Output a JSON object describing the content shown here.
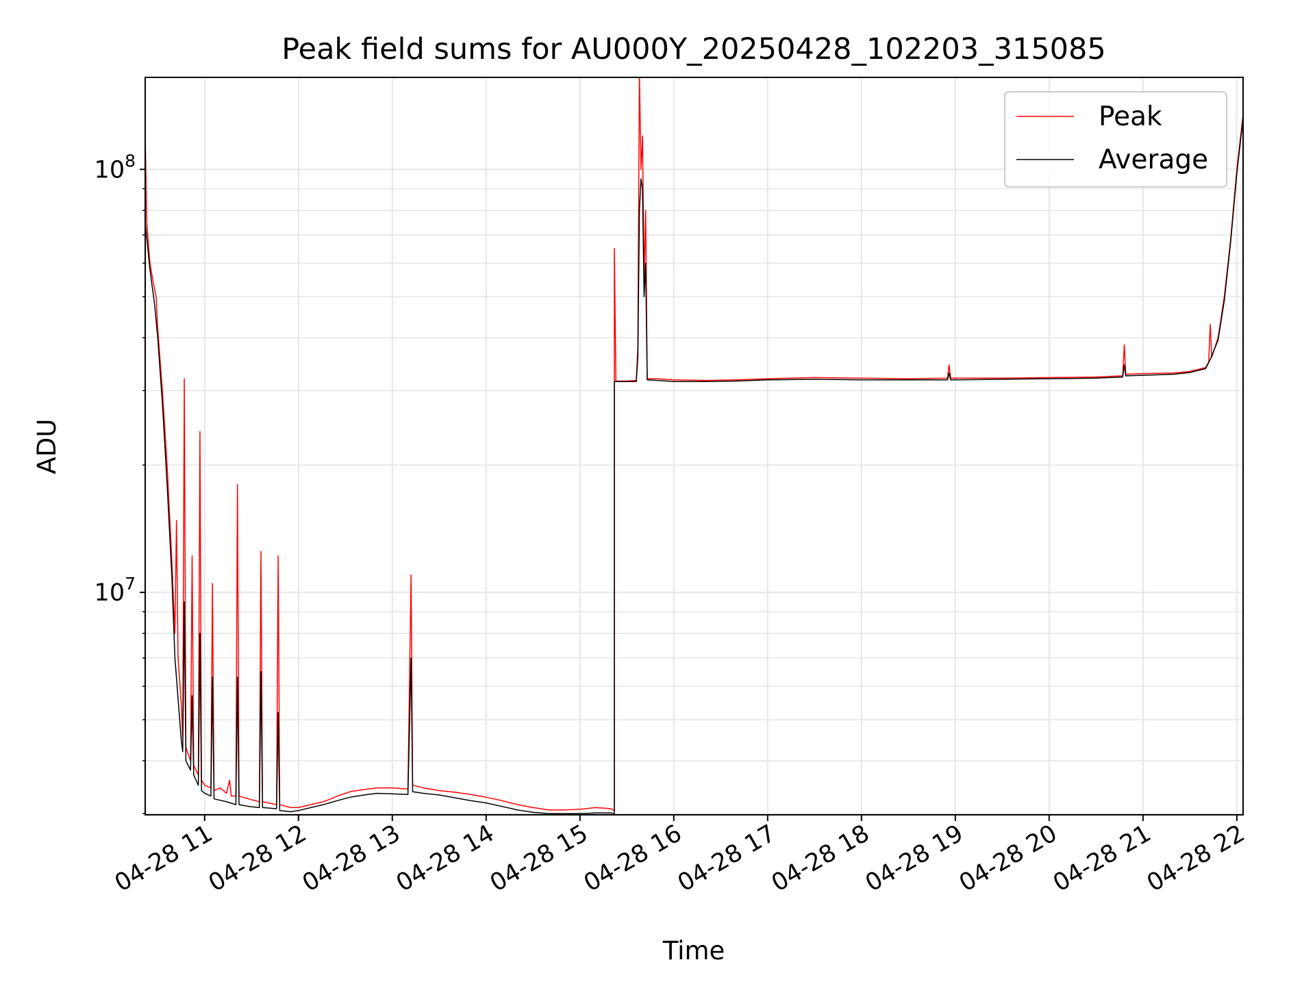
{
  "chart_data": {
    "type": "line",
    "title": "Peak field sums for AU000Y_20250428_102203_315085",
    "xlabel": "Time",
    "ylabel": "ADU",
    "yscale": "log",
    "ylim": [
      2980000,
      165000000
    ],
    "xlim": [
      "2025-04-28 10:22",
      "2025-04-28 22:04"
    ],
    "grid": true,
    "legend_position": "top-right",
    "x_ticks": [
      {
        "t": "2025-04-28 11:00",
        "label": "04-28 11"
      },
      {
        "t": "2025-04-28 12:00",
        "label": "04-28 12"
      },
      {
        "t": "2025-04-28 13:00",
        "label": "04-28 13"
      },
      {
        "t": "2025-04-28 14:00",
        "label": "04-28 14"
      },
      {
        "t": "2025-04-28 15:00",
        "label": "04-28 15"
      },
      {
        "t": "2025-04-28 16:00",
        "label": "04-28 16"
      },
      {
        "t": "2025-04-28 17:00",
        "label": "04-28 17"
      },
      {
        "t": "2025-04-28 18:00",
        "label": "04-28 18"
      },
      {
        "t": "2025-04-28 19:00",
        "label": "04-28 19"
      },
      {
        "t": "2025-04-28 20:00",
        "label": "04-28 20"
      },
      {
        "t": "2025-04-28 21:00",
        "label": "04-28 21"
      },
      {
        "t": "2025-04-28 22:00",
        "label": "04-28 22"
      }
    ],
    "y_major_ticks": [
      {
        "value": 10000000,
        "base": "10",
        "exp": "7"
      },
      {
        "value": 100000000,
        "base": "10",
        "exp": "8"
      }
    ],
    "series": [
      {
        "name": "Peak",
        "color": "#ff0000",
        "points": [
          [
            "2025-04-28 10:22",
            120000000
          ],
          [
            "2025-04-28 10:23",
            75000000
          ],
          [
            "2025-04-28 10:25",
            60000000
          ],
          [
            "2025-04-28 10:28",
            52000000
          ],
          [
            "2025-04-28 10:29",
            50000000
          ],
          [
            "2025-04-28 10:30",
            42000000
          ],
          [
            "2025-04-28 10:33",
            30000000
          ],
          [
            "2025-04-28 10:36",
            20000000
          ],
          [
            "2025-04-28 10:39",
            12000000
          ],
          [
            "2025-04-28 10:41",
            8000000
          ],
          [
            "2025-04-28 10:42",
            14800000
          ],
          [
            "2025-04-28 10:43",
            7000000
          ],
          [
            "2025-04-28 10:45",
            5500000
          ],
          [
            "2025-04-28 10:46",
            4500000
          ],
          [
            "2025-04-28 10:47",
            32000000
          ],
          [
            "2025-04-28 10:48",
            4300000
          ],
          [
            "2025-04-28 10:51",
            4000000
          ],
          [
            "2025-04-28 10:52",
            12200000
          ],
          [
            "2025-04-28 10:53",
            3900000
          ],
          [
            "2025-04-28 10:56",
            3700000
          ],
          [
            "2025-04-28 10:57",
            24000000
          ],
          [
            "2025-04-28 10:58",
            3600000
          ],
          [
            "2025-04-28 11:00",
            3500000
          ],
          [
            "2025-04-28 11:04",
            3450000
          ],
          [
            "2025-04-28 11:05",
            10500000
          ],
          [
            "2025-04-28 11:06",
            3400000
          ],
          [
            "2025-04-28 11:10",
            3450000
          ],
          [
            "2025-04-28 11:14",
            3350000
          ],
          [
            "2025-04-28 11:16",
            3600000
          ],
          [
            "2025-04-28 11:17",
            3300000
          ],
          [
            "2025-04-28 11:20",
            3300000
          ],
          [
            "2025-04-28 11:21",
            18000000
          ],
          [
            "2025-04-28 11:22",
            3300000
          ],
          [
            "2025-04-28 11:28",
            3250000
          ],
          [
            "2025-04-28 11:35",
            3200000
          ],
          [
            "2025-04-28 11:36",
            12500000
          ],
          [
            "2025-04-28 11:37",
            3200000
          ],
          [
            "2025-04-28 11:46",
            3150000
          ],
          [
            "2025-04-28 11:47",
            12200000
          ],
          [
            "2025-04-28 11:48",
            3150000
          ],
          [
            "2025-04-28 11:55",
            3100000
          ],
          [
            "2025-04-28 12:00",
            3100000
          ],
          [
            "2025-04-28 12:08",
            3150000
          ],
          [
            "2025-04-28 12:16",
            3200000
          ],
          [
            "2025-04-28 12:25",
            3300000
          ],
          [
            "2025-04-28 12:33",
            3380000
          ],
          [
            "2025-04-28 12:42",
            3420000
          ],
          [
            "2025-04-28 12:50",
            3450000
          ],
          [
            "2025-04-28 13:00",
            3450000
          ],
          [
            "2025-04-28 13:10",
            3430000
          ],
          [
            "2025-04-28 13:12",
            11000000
          ],
          [
            "2025-04-28 13:13",
            3500000
          ],
          [
            "2025-04-28 13:20",
            3450000
          ],
          [
            "2025-04-28 13:30",
            3400000
          ],
          [
            "2025-04-28 13:40",
            3370000
          ],
          [
            "2025-04-28 13:50",
            3330000
          ],
          [
            "2025-04-28 14:00",
            3280000
          ],
          [
            "2025-04-28 14:10",
            3220000
          ],
          [
            "2025-04-28 14:20",
            3150000
          ],
          [
            "2025-04-28 14:30",
            3100000
          ],
          [
            "2025-04-28 14:40",
            3060000
          ],
          [
            "2025-04-28 14:50",
            3060000
          ],
          [
            "2025-04-28 15:00",
            3070000
          ],
          [
            "2025-04-28 15:10",
            3100000
          ],
          [
            "2025-04-28 15:20",
            3080000
          ],
          [
            "2025-04-28 15:22",
            3050000
          ],
          [
            "2025-04-28 15:22",
            65000000
          ],
          [
            "2025-04-28 15:23",
            31600000
          ],
          [
            "2025-04-28 15:30",
            31600000
          ],
          [
            "2025-04-28 15:36",
            31700000
          ],
          [
            "2025-04-28 15:37",
            38000000
          ],
          [
            "2025-04-28 15:38",
            170000000
          ],
          [
            "2025-04-28 15:39",
            100000000
          ],
          [
            "2025-04-28 15:40",
            120000000
          ],
          [
            "2025-04-28 15:41",
            55000000
          ],
          [
            "2025-04-28 15:42",
            80000000
          ],
          [
            "2025-04-28 15:43",
            32000000
          ],
          [
            "2025-04-28 15:50",
            32000000
          ],
          [
            "2025-04-28 16:00",
            31800000
          ],
          [
            "2025-04-28 16:20",
            31700000
          ],
          [
            "2025-04-28 16:40",
            31800000
          ],
          [
            "2025-04-28 17:00",
            32000000
          ],
          [
            "2025-04-28 17:30",
            32200000
          ],
          [
            "2025-04-28 18:00",
            32100000
          ],
          [
            "2025-04-28 18:30",
            32000000
          ],
          [
            "2025-04-28 18:55",
            32100000
          ],
          [
            "2025-04-28 18:56",
            34500000
          ],
          [
            "2025-04-28 18:57",
            32100000
          ],
          [
            "2025-04-28 19:30",
            32100000
          ],
          [
            "2025-04-28 20:00",
            32200000
          ],
          [
            "2025-04-28 20:30",
            32300000
          ],
          [
            "2025-04-28 20:47",
            32500000
          ],
          [
            "2025-04-28 20:48",
            38500000
          ],
          [
            "2025-04-28 20:49",
            32800000
          ],
          [
            "2025-04-28 21:00",
            32900000
          ],
          [
            "2025-04-28 21:20",
            33000000
          ],
          [
            "2025-04-28 21:30",
            33300000
          ],
          [
            "2025-04-28 21:40",
            34000000
          ],
          [
            "2025-04-28 21:42",
            35000000
          ],
          [
            "2025-04-28 21:43",
            43000000
          ],
          [
            "2025-04-28 21:44",
            36000000
          ],
          [
            "2025-04-28 21:48",
            40000000
          ],
          [
            "2025-04-28 21:52",
            50000000
          ],
          [
            "2025-04-28 21:56",
            68000000
          ],
          [
            "2025-04-28 22:00",
            100000000
          ],
          [
            "2025-04-28 22:04",
            135000000
          ]
        ]
      },
      {
        "name": "Average",
        "color": "#000000",
        "points": [
          [
            "2025-04-28 10:22",
            75000000
          ],
          [
            "2025-04-28 10:25",
            58000000
          ],
          [
            "2025-04-28 10:28",
            48000000
          ],
          [
            "2025-04-28 10:30",
            40000000
          ],
          [
            "2025-04-28 10:33",
            28000000
          ],
          [
            "2025-04-28 10:36",
            18000000
          ],
          [
            "2025-04-28 10:39",
            11000000
          ],
          [
            "2025-04-28 10:41",
            7000000
          ],
          [
            "2025-04-28 10:43",
            5600000
          ],
          [
            "2025-04-28 10:45",
            4500000
          ],
          [
            "2025-04-28 10:46",
            4200000
          ],
          [
            "2025-04-28 10:47",
            9500000
          ],
          [
            "2025-04-28 10:48",
            4000000
          ],
          [
            "2025-04-28 10:51",
            3800000
          ],
          [
            "2025-04-28 10:52",
            5700000
          ],
          [
            "2025-04-28 10:53",
            3700000
          ],
          [
            "2025-04-28 10:56",
            3500000
          ],
          [
            "2025-04-28 10:57",
            8000000
          ],
          [
            "2025-04-28 10:58",
            3400000
          ],
          [
            "2025-04-28 11:00",
            3350000
          ],
          [
            "2025-04-28 11:04",
            3300000
          ],
          [
            "2025-04-28 11:05",
            6300000
          ],
          [
            "2025-04-28 11:06",
            3250000
          ],
          [
            "2025-04-28 11:14",
            3200000
          ],
          [
            "2025-04-28 11:20",
            3150000
          ],
          [
            "2025-04-28 11:21",
            6300000
          ],
          [
            "2025-04-28 11:22",
            3150000
          ],
          [
            "2025-04-28 11:28",
            3120000
          ],
          [
            "2025-04-28 11:35",
            3100000
          ],
          [
            "2025-04-28 11:36",
            6500000
          ],
          [
            "2025-04-28 11:37",
            3100000
          ],
          [
            "2025-04-28 11:46",
            3080000
          ],
          [
            "2025-04-28 11:47",
            5200000
          ],
          [
            "2025-04-28 11:48",
            3050000
          ],
          [
            "2025-04-28 11:55",
            3030000
          ],
          [
            "2025-04-28 12:00",
            3050000
          ],
          [
            "2025-04-28 12:08",
            3100000
          ],
          [
            "2025-04-28 12:16",
            3150000
          ],
          [
            "2025-04-28 12:25",
            3220000
          ],
          [
            "2025-04-28 12:33",
            3280000
          ],
          [
            "2025-04-28 12:42",
            3320000
          ],
          [
            "2025-04-28 12:50",
            3350000
          ],
          [
            "2025-04-28 13:00",
            3340000
          ],
          [
            "2025-04-28 13:10",
            3330000
          ],
          [
            "2025-04-28 13:12",
            7000000
          ],
          [
            "2025-04-28 13:13",
            3380000
          ],
          [
            "2025-04-28 13:20",
            3350000
          ],
          [
            "2025-04-28 13:30",
            3320000
          ],
          [
            "2025-04-28 13:40",
            3270000
          ],
          [
            "2025-04-28 13:50",
            3220000
          ],
          [
            "2025-04-28 14:00",
            3180000
          ],
          [
            "2025-04-28 14:10",
            3120000
          ],
          [
            "2025-04-28 14:20",
            3060000
          ],
          [
            "2025-04-28 14:30",
            3020000
          ],
          [
            "2025-04-28 14:40",
            3000000
          ],
          [
            "2025-04-28 14:50",
            3000000
          ],
          [
            "2025-04-28 15:00",
            3000000
          ],
          [
            "2025-04-28 15:10",
            3010000
          ],
          [
            "2025-04-28 15:20",
            3010000
          ],
          [
            "2025-04-28 15:22",
            3000000
          ],
          [
            "2025-04-28 15:22",
            31500000
          ],
          [
            "2025-04-28 15:30",
            31500000
          ],
          [
            "2025-04-28 15:36",
            31500000
          ],
          [
            "2025-04-28 15:37",
            36000000
          ],
          [
            "2025-04-28 15:38",
            80000000
          ],
          [
            "2025-04-28 15:39",
            95000000
          ],
          [
            "2025-04-28 15:40",
            90000000
          ],
          [
            "2025-04-28 15:41",
            50000000
          ],
          [
            "2025-04-28 15:42",
            60000000
          ],
          [
            "2025-04-28 15:43",
            31800000
          ],
          [
            "2025-04-28 15:50",
            31700000
          ],
          [
            "2025-04-28 16:00",
            31500000
          ],
          [
            "2025-04-28 16:20",
            31500000
          ],
          [
            "2025-04-28 16:40",
            31600000
          ],
          [
            "2025-04-28 17:00",
            31800000
          ],
          [
            "2025-04-28 17:30",
            31900000
          ],
          [
            "2025-04-28 18:00",
            31800000
          ],
          [
            "2025-04-28 18:30",
            31800000
          ],
          [
            "2025-04-28 18:55",
            31800000
          ],
          [
            "2025-04-28 18:56",
            33000000
          ],
          [
            "2025-04-28 18:57",
            31800000
          ],
          [
            "2025-04-28 19:30",
            31900000
          ],
          [
            "2025-04-28 20:00",
            32000000
          ],
          [
            "2025-04-28 20:30",
            32100000
          ],
          [
            "2025-04-28 20:47",
            32300000
          ],
          [
            "2025-04-28 20:48",
            34500000
          ],
          [
            "2025-04-28 20:49",
            32500000
          ],
          [
            "2025-04-28 21:00",
            32600000
          ],
          [
            "2025-04-28 21:20",
            32800000
          ],
          [
            "2025-04-28 21:30",
            33100000
          ],
          [
            "2025-04-28 21:40",
            33800000
          ],
          [
            "2025-04-28 21:43",
            35500000
          ],
          [
            "2025-04-28 21:48",
            39500000
          ],
          [
            "2025-04-28 21:52",
            49000000
          ],
          [
            "2025-04-28 21:56",
            67000000
          ],
          [
            "2025-04-28 22:00",
            98000000
          ],
          [
            "2025-04-28 22:04",
            132000000
          ]
        ]
      }
    ]
  }
}
